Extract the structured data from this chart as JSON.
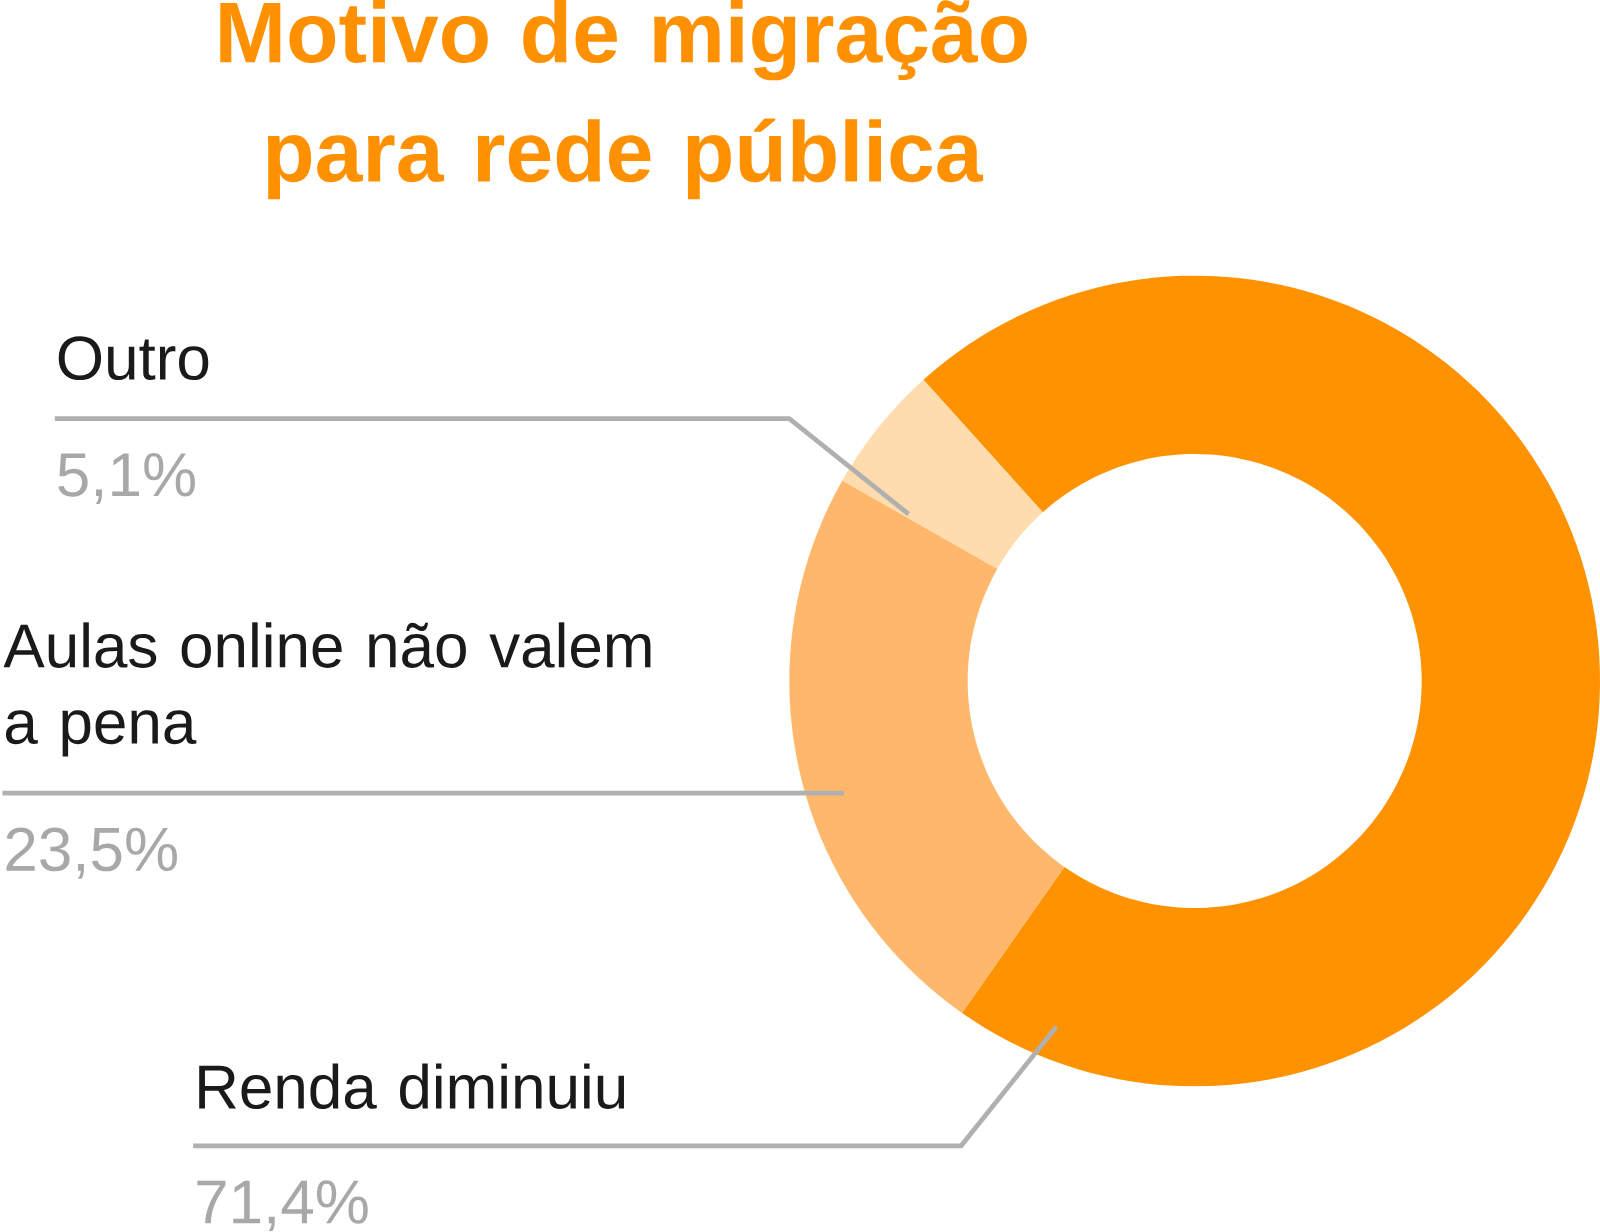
{
  "chart_data": {
    "type": "donut",
    "title": "Motivo de migração para rede pública",
    "categories": [
      "Renda diminuiu",
      "Aulas online não valem a pena",
      "Outro"
    ],
    "values": [
      71.4,
      23.5,
      5.1
    ],
    "colors": [
      "#ff9200",
      "#ffb86b",
      "#ffdcae"
    ],
    "value_labels": [
      "71,4%",
      "23,5%",
      "5,1%"
    ],
    "legend": false
  }
}
